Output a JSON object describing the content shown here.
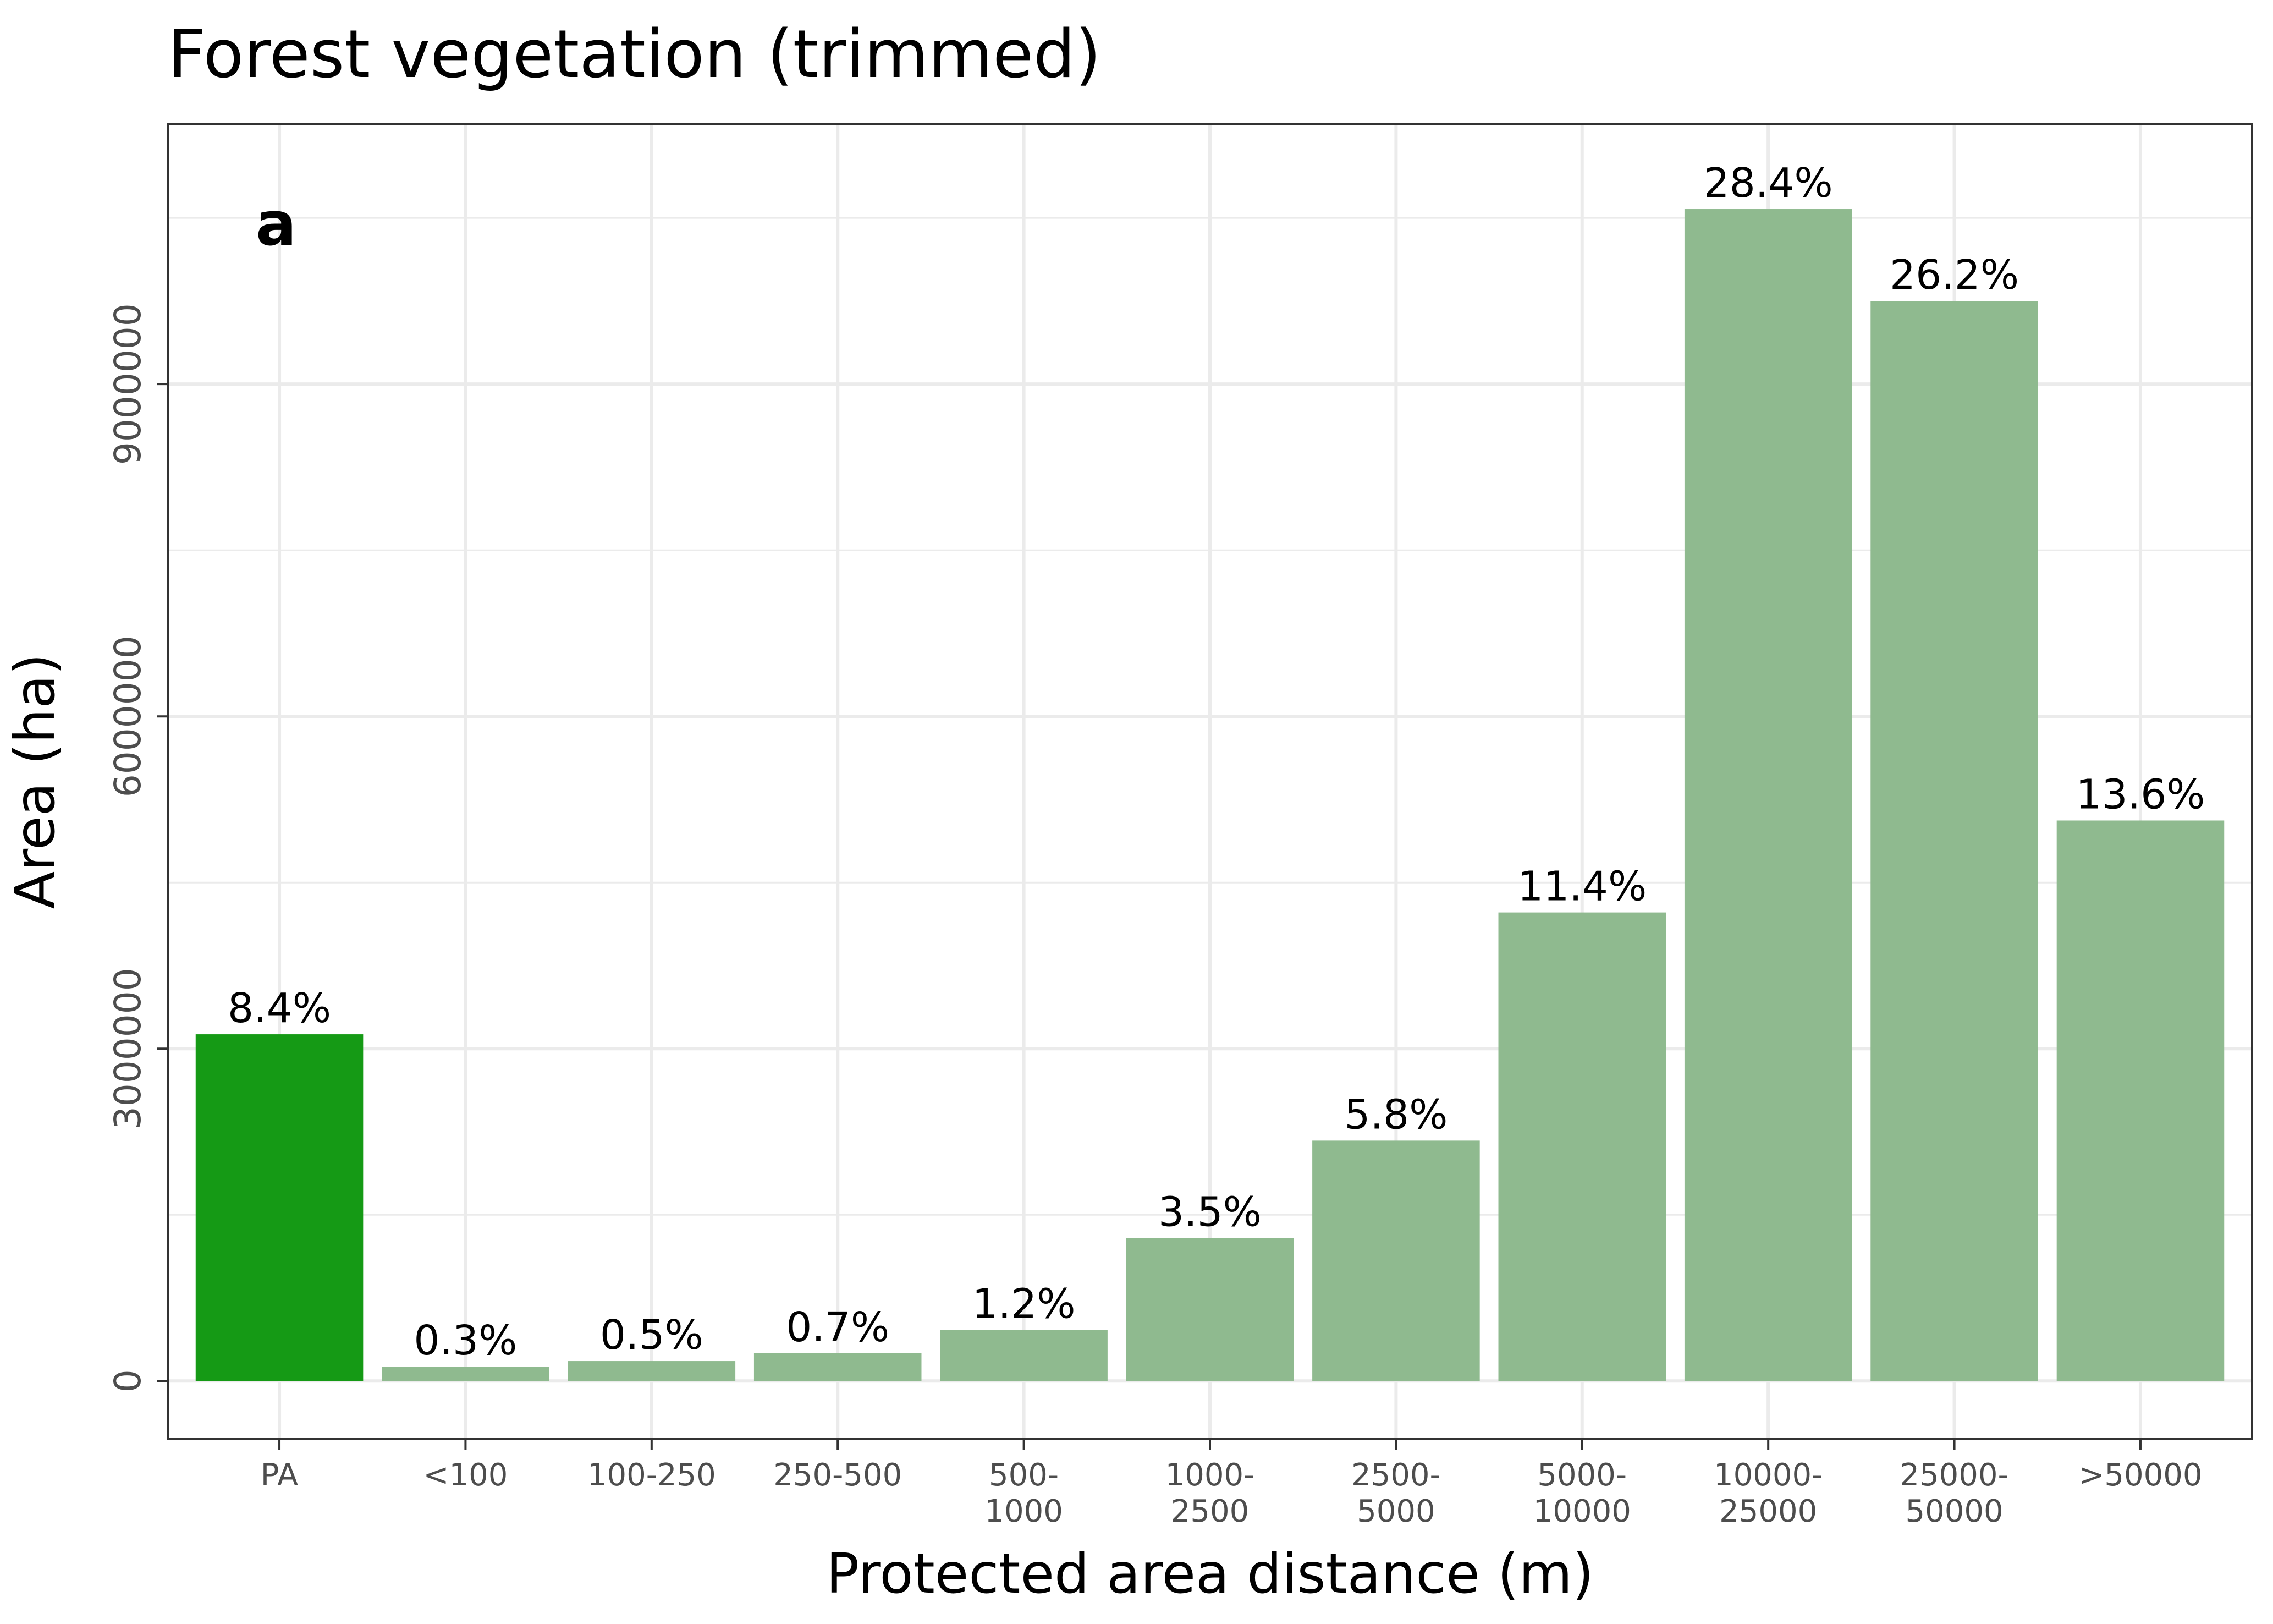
{
  "chart_data": {
    "type": "bar",
    "title": "Forest vegetation (trimmed)",
    "panel_label": "a",
    "xlabel": "Protected area distance (m)",
    "ylabel": "Area (ha)",
    "ylim": [
      -520000,
      11350000
    ],
    "y_ticks": [
      0,
      3000000,
      6000000,
      9000000
    ],
    "y_tick_labels": [
      "0",
      "3000000",
      "6000000",
      "9000000"
    ],
    "grid": true,
    "categories": [
      [
        "PA"
      ],
      [
        "<100"
      ],
      [
        "100-250"
      ],
      [
        "250-500"
      ],
      [
        "500-",
        "1000"
      ],
      [
        "1000-",
        "2500"
      ],
      [
        "2500-",
        "5000"
      ],
      [
        "5000-",
        "10000"
      ],
      [
        "10000-",
        "25000"
      ],
      [
        "25000-",
        "50000"
      ],
      [
        ">50000"
      ]
    ],
    "values": [
      3130000,
      130000,
      180000,
      250000,
      460000,
      1290000,
      2170000,
      4230000,
      10580000,
      9750000,
      5060000
    ],
    "labels": [
      "8.4%",
      "0.3%",
      "0.5%",
      "0.7%",
      "1.2%",
      "3.5%",
      "5.8%",
      "11.4%",
      "28.4%",
      "26.2%",
      "13.6%"
    ],
    "colors": [
      "#159A15",
      "#8FBA8F",
      "#8FBA8F",
      "#8FBA8F",
      "#8FBA8F",
      "#8FBA8F",
      "#8FBA8F",
      "#8FBA8F",
      "#8FBA8F",
      "#8FBA8F",
      "#8FBA8F"
    ],
    "grid_color": "#EBEBEB",
    "panel_border_color": "#333333"
  }
}
